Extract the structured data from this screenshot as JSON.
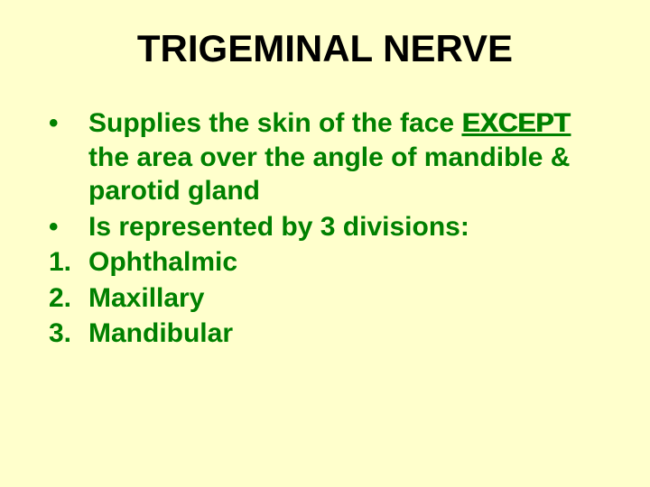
{
  "slide": {
    "background_color": "#ffffcc",
    "title": {
      "text": "TRIGEMINAL NERVE",
      "color": "#000000",
      "fontsize": 42,
      "weight": "bold"
    },
    "content": {
      "color": "#008000",
      "fontsize": 30,
      "weight": "bold",
      "items": [
        {
          "marker": "•",
          "text_pre": "Supplies the skin of the face ",
          "emph": "EXCEPT",
          "text_post": " the area over the angle of mandible & parotid gland"
        },
        {
          "marker": "•",
          "text_pre": "Is represented by 3 divisions:",
          "emph": "",
          "text_post": ""
        },
        {
          "marker": "1.",
          "text_pre": "Ophthalmic",
          "emph": "",
          "text_post": ""
        },
        {
          "marker": "2.",
          "text_pre": "Maxillary",
          "emph": "",
          "text_post": ""
        },
        {
          "marker": "3.",
          "text_pre": "Mandibular",
          "emph": "",
          "text_post": ""
        }
      ]
    }
  }
}
